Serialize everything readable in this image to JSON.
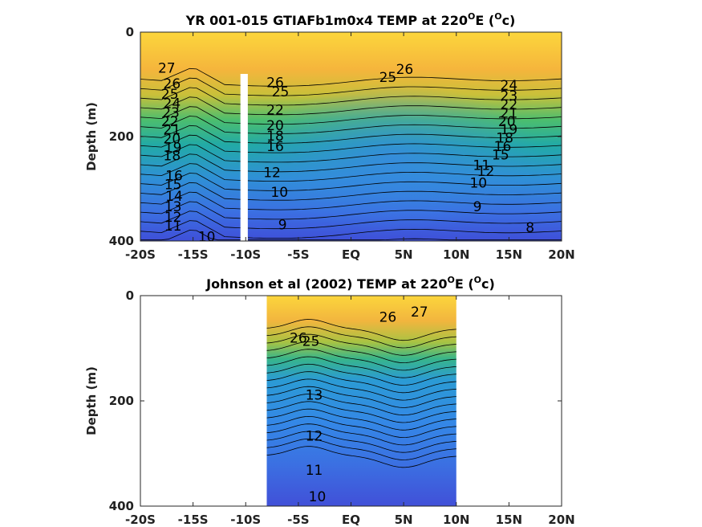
{
  "colors": {
    "warm": "#fbd33a",
    "mid_warm": "#f5b23c",
    "green": "#4cbe6e",
    "teal": "#20a8a8",
    "blue": "#3b7de0",
    "deep_blue": "#3f4fd8",
    "missing": "#ffffff"
  },
  "chart_data": [
    {
      "type": "contour",
      "title_main": "YR 001-015 GTIAFb1m0x4 TEMP at 220",
      "title_deg": "O",
      "title_mid": "E (",
      "title_unit": "c",
      "title_end": ")",
      "ylabel": "Depth (m)",
      "xlim": [
        -20,
        20
      ],
      "ylim": [
        0,
        400
      ],
      "y_reversed": true,
      "data_extent": [
        -20,
        20
      ],
      "missing_band": [
        -10.5,
        -9.8,
        80
      ],
      "x_ticks": [
        -20,
        -15,
        -10,
        -5,
        0,
        5,
        10,
        15,
        20
      ],
      "x_tick_labels": [
        "-20S",
        "-15S",
        "-10S",
        "-5S",
        "EQ",
        "5N",
        "10N",
        "15N",
        "20N"
      ],
      "y_ticks": [
        0,
        200,
        400
      ],
      "y_tick_labels": [
        "0",
        "200",
        "400"
      ],
      "contour_labels": [
        {
          "text": "27",
          "x": -17.5,
          "y": 70
        },
        {
          "text": "26",
          "x": -17.0,
          "y": 100
        },
        {
          "text": "25",
          "x": -17.2,
          "y": 120
        },
        {
          "text": "24",
          "x": -17.0,
          "y": 138
        },
        {
          "text": "23",
          "x": -17.1,
          "y": 155
        },
        {
          "text": "22",
          "x": -17.2,
          "y": 172
        },
        {
          "text": "21",
          "x": -17.0,
          "y": 188
        },
        {
          "text": "20",
          "x": -17.0,
          "y": 205
        },
        {
          "text": "19",
          "x": -16.9,
          "y": 222
        },
        {
          "text": "18",
          "x": -17.0,
          "y": 238
        },
        {
          "text": "16",
          "x": -16.8,
          "y": 276
        },
        {
          "text": "15",
          "x": -16.9,
          "y": 293
        },
        {
          "text": "14",
          "x": -16.8,
          "y": 315
        },
        {
          "text": "13",
          "x": -16.9,
          "y": 335
        },
        {
          "text": "12",
          "x": -16.9,
          "y": 355
        },
        {
          "text": "11",
          "x": -16.9,
          "y": 372
        },
        {
          "text": "10",
          "x": -13.7,
          "y": 393
        },
        {
          "text": "26",
          "x": -7.2,
          "y": 98
        },
        {
          "text": "25",
          "x": -6.7,
          "y": 115
        },
        {
          "text": "22",
          "x": -7.2,
          "y": 150
        },
        {
          "text": "20",
          "x": -7.2,
          "y": 180
        },
        {
          "text": "18",
          "x": -7.2,
          "y": 200
        },
        {
          "text": "16",
          "x": -7.2,
          "y": 220
        },
        {
          "text": "12",
          "x": -7.5,
          "y": 270
        },
        {
          "text": "10",
          "x": -6.8,
          "y": 308
        },
        {
          "text": "9",
          "x": -6.5,
          "y": 370
        },
        {
          "text": "26",
          "x": 5.1,
          "y": 72
        },
        {
          "text": "25",
          "x": 3.5,
          "y": 88
        },
        {
          "text": "24",
          "x": 15.0,
          "y": 103
        },
        {
          "text": "23",
          "x": 15.0,
          "y": 123
        },
        {
          "text": "22",
          "x": 15.0,
          "y": 140
        },
        {
          "text": "21",
          "x": 15.0,
          "y": 156
        },
        {
          "text": "20",
          "x": 14.8,
          "y": 172
        },
        {
          "text": "19",
          "x": 15.0,
          "y": 188
        },
        {
          "text": "18",
          "x": 14.6,
          "y": 204
        },
        {
          "text": "16",
          "x": 14.4,
          "y": 220
        },
        {
          "text": "15",
          "x": 14.2,
          "y": 236
        },
        {
          "text": "12",
          "x": 12.8,
          "y": 268
        },
        {
          "text": "11",
          "x": 12.4,
          "y": 256
        },
        {
          "text": "10",
          "x": 12.1,
          "y": 290
        },
        {
          "text": "9",
          "x": 12.0,
          "y": 335
        },
        {
          "text": "8",
          "x": 17.0,
          "y": 375
        }
      ]
    },
    {
      "type": "contour",
      "title_main": "Johnson et al (2002) TEMP at 220",
      "title_deg": "O",
      "title_mid": "E (",
      "title_unit": "c",
      "title_end": ")",
      "ylabel": "Depth (m)",
      "xlim": [
        -20,
        20
      ],
      "ylim": [
        0,
        400
      ],
      "y_reversed": true,
      "data_extent": [
        -8,
        10
      ],
      "missing_band": null,
      "x_ticks": [
        -20,
        -15,
        -10,
        -5,
        0,
        5,
        10,
        15,
        20
      ],
      "x_tick_labels": [
        "-20S",
        "-15S",
        "-10S",
        "-5S",
        "EQ",
        "5N",
        "10N",
        "15N",
        "20N"
      ],
      "y_ticks": [
        0,
        200,
        400
      ],
      "y_tick_labels": [
        "0",
        "200",
        "400"
      ],
      "contour_labels": [
        {
          "text": "27",
          "x": 6.5,
          "y": 32
        },
        {
          "text": "26",
          "x": 3.5,
          "y": 42
        },
        {
          "text": "26",
          "x": -5.0,
          "y": 82
        },
        {
          "text": "25",
          "x": -3.8,
          "y": 88
        },
        {
          "text": "13",
          "x": -3.5,
          "y": 190
        },
        {
          "text": "12",
          "x": -3.5,
          "y": 268
        },
        {
          "text": "11",
          "x": -3.5,
          "y": 333
        },
        {
          "text": "10",
          "x": -3.2,
          "y": 383
        }
      ]
    }
  ]
}
